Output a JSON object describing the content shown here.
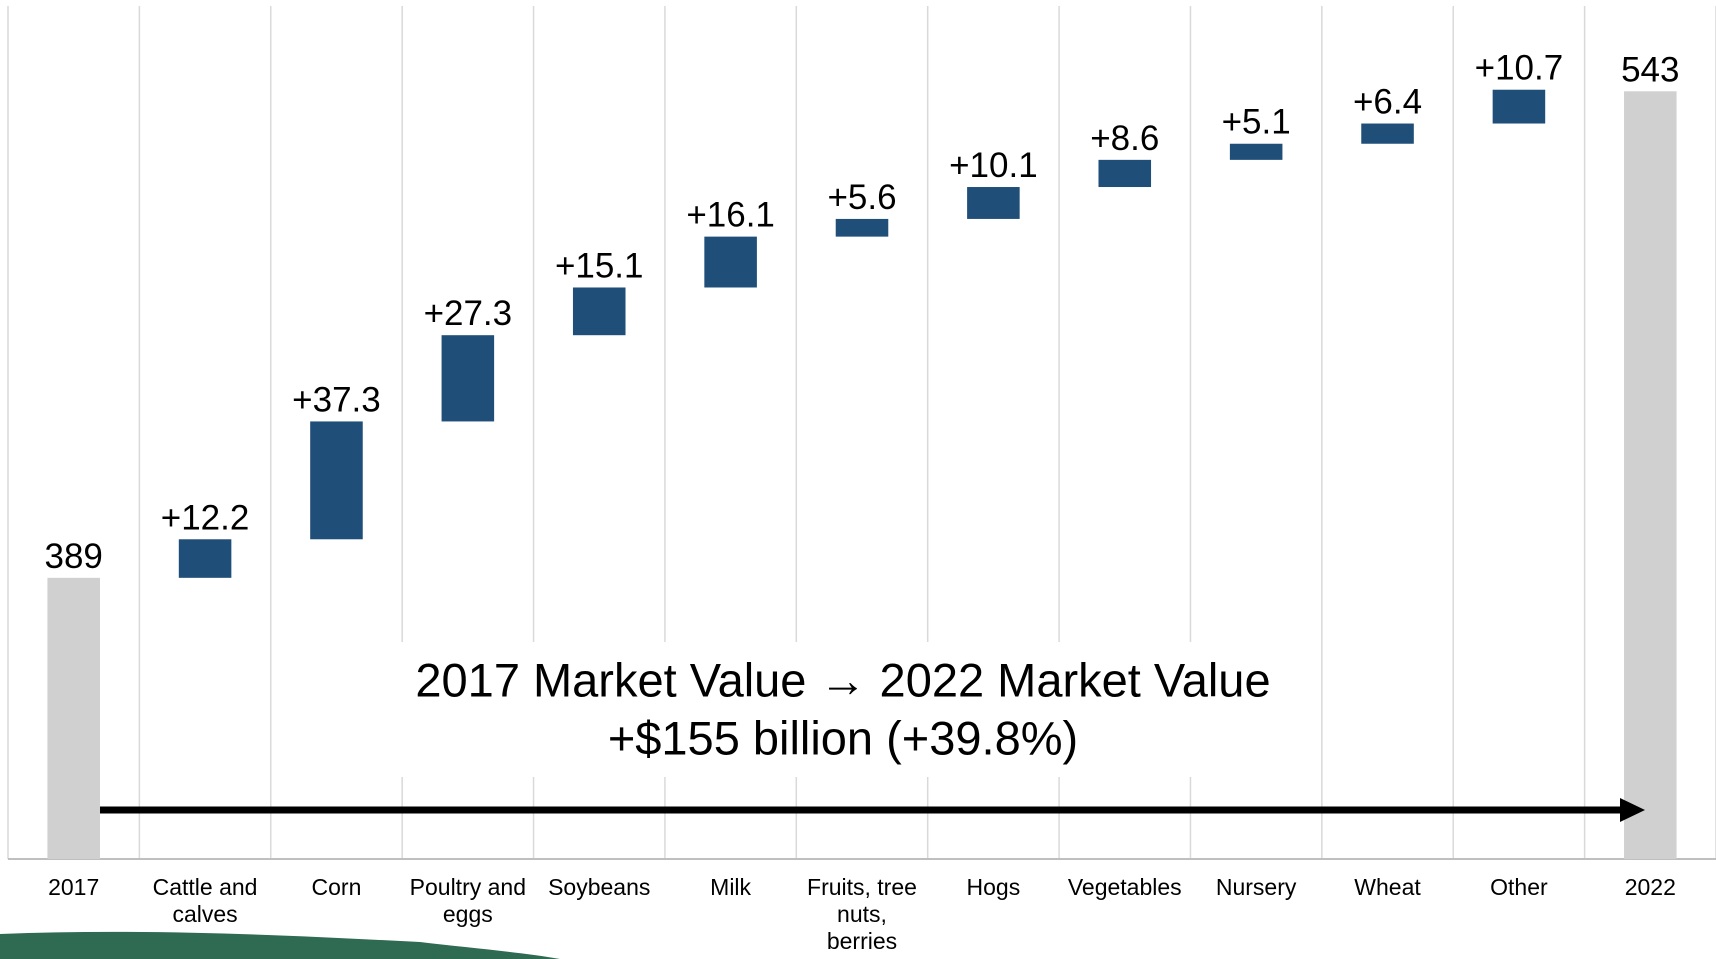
{
  "chart_data": {
    "type": "waterfall",
    "categories": [
      "2017",
      "Cattle and calves",
      "Corn",
      "Poultry and eggs",
      "Soybeans",
      "Milk",
      "Fruits, tree nuts, berries",
      "Hogs",
      "Vegetables",
      "Nursery",
      "Wheat",
      "Other",
      "2022"
    ],
    "values": [
      389,
      12.2,
      37.3,
      27.3,
      15.1,
      16.1,
      5.6,
      10.1,
      8.6,
      5.1,
      6.4,
      10.7,
      543
    ],
    "value_labels": [
      "389",
      "+12.2",
      "+37.3",
      "+27.3",
      "+15.1",
      "+16.1",
      "+5.6",
      "+10.1",
      "+8.6",
      "+5.1",
      "+6.4",
      "+10.7",
      "543"
    ],
    "color": "#1f4e79",
    "total_color": "#d0d0d0",
    "ylim": [
      300,
      570
    ],
    "grid": true,
    "annotation": [
      "2017 Market Value → 2022 Market Value",
      "+$155 billion (+39.8%)"
    ]
  }
}
